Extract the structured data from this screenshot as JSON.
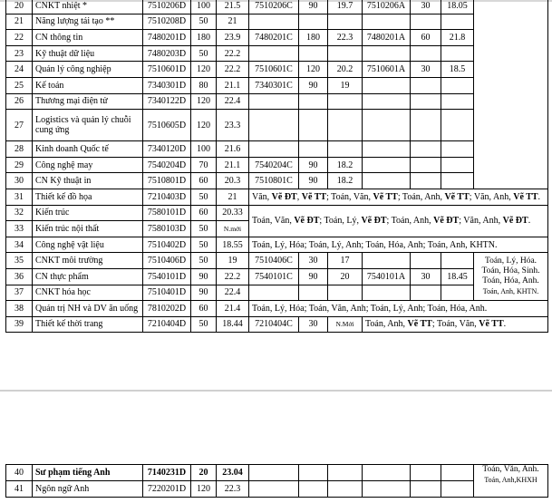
{
  "table1": {
    "rows": [
      {
        "no": "20",
        "name": "CNKT nhiệt *",
        "d": [
          "7510206D",
          "100",
          "21.5"
        ],
        "c": [
          "7510206C",
          "90",
          "19.7"
        ],
        "a": [
          "7510206A",
          "30",
          "18.05"
        ]
      },
      {
        "no": "21",
        "name": "Năng lượng tái tạo **",
        "d": [
          "7510208D",
          "50",
          "21"
        ],
        "c": [
          "",
          "",
          ""
        ],
        "a": [
          "",
          "",
          ""
        ]
      },
      {
        "no": "22",
        "name": "CN thông tin",
        "d": [
          "7480201D",
          "180",
          "23.9"
        ],
        "c": [
          "7480201C",
          "180",
          "22.3"
        ],
        "a": [
          "7480201A",
          "60",
          "21.8"
        ]
      },
      {
        "no": "23",
        "name": "Kỹ thuật dữ liệu",
        "d": [
          "7480203D",
          "50",
          "22.2"
        ],
        "c": [
          "",
          "",
          ""
        ],
        "a": [
          "",
          "",
          ""
        ]
      },
      {
        "no": "24",
        "name": "Quản lý công nghiệp",
        "d": [
          "7510601D",
          "120",
          "22.2"
        ],
        "c": [
          "7510601C",
          "120",
          "20.2"
        ],
        "a": [
          "7510601A",
          "30",
          "18.5"
        ]
      },
      {
        "no": "25",
        "name": "Kế toán",
        "d": [
          "7340301D",
          "80",
          "21.1"
        ],
        "c": [
          "7340301C",
          "90",
          "19"
        ],
        "a": [
          "",
          "",
          ""
        ]
      },
      {
        "no": "26",
        "name": "Thương mại điện tử",
        "d": [
          "7340122D",
          "120",
          "22.4"
        ],
        "c": [
          "",
          "",
          ""
        ],
        "a": [
          "",
          "",
          ""
        ]
      },
      {
        "no": "27",
        "name": "Logistics và quản lý chuỗi cung ứng",
        "d": [
          "7510605D",
          "120",
          "23.3"
        ],
        "c": [
          "",
          "",
          ""
        ],
        "a": [
          "",
          "",
          ""
        ]
      },
      {
        "no": "28",
        "name": "Kinh doanh Quốc tế",
        "d": [
          "7340120D",
          "100",
          "21.6"
        ],
        "c": [
          "",
          "",
          ""
        ],
        "a": [
          "",
          "",
          ""
        ]
      },
      {
        "no": "29",
        "name": "Công nghệ may",
        "d": [
          "7540204D",
          "70",
          "21.1"
        ],
        "c": [
          "7540204C",
          "90",
          "18.2"
        ],
        "a": [
          "",
          "",
          ""
        ]
      },
      {
        "no": "30",
        "name": "CN Kỹ thuật in",
        "d": [
          "7510801D",
          "60",
          "20.3"
        ],
        "c": [
          "7510801C",
          "90",
          "18.2"
        ],
        "a": [
          "",
          "",
          ""
        ]
      },
      {
        "no": "31",
        "name": "Thiết kế đồ họa",
        "d": [
          "7210403D",
          "50",
          "21"
        ],
        "combo": "Văn, Vẽ ĐT, Vẽ TT; Toán, Văn, Vẽ TT; Toán, Anh, Vẽ TT; Văn, Anh, Vẽ TT."
      },
      {
        "no": "32",
        "name": "Kiến trúc",
        "d": [
          "7580101D",
          "60",
          "20.33"
        ],
        "combo": "Toán, Văn, Vẽ ĐT; Toán, Lý, Vẽ ĐT; Toán, Anh, Vẽ ĐT; Văn, Anh, Vẽ ĐT."
      },
      {
        "no": "33",
        "name": "Kiến trúc nội thất",
        "d": [
          "7580103D",
          "50",
          "N.mới"
        ]
      },
      {
        "no": "34",
        "name": "Công nghệ vật liệu",
        "d": [
          "7510402D",
          "50",
          "18.55"
        ],
        "combo": "Toán, Lý, Hóa; Toán, Lý, Anh; Toán, Hóa, Anh; Toán, Anh, KHTN."
      },
      {
        "no": "35",
        "name": "CNKT môi trường",
        "d": [
          "7510406D",
          "50",
          "19"
        ],
        "c": [
          "7510406C",
          "30",
          "17"
        ],
        "a": [
          "",
          "",
          ""
        ],
        "combo_lines": [
          "Toán, Lý, Hóa.",
          "Toán, Hóa,  Sinh.",
          "Toán, Hóa, Anh.",
          "Toán, Anh, KHTN."
        ]
      },
      {
        "no": "36",
        "name": "CN thực phẩm",
        "d": [
          "7540101D",
          "90",
          "22.2"
        ],
        "c": [
          "7540101C",
          "90",
          "20"
        ],
        "a": [
          "7540101A",
          "30",
          "18.45"
        ]
      },
      {
        "no": "37",
        "name": "CNKT hóa học",
        "d": [
          "7510401D",
          "90",
          "22.4"
        ],
        "c": [
          "",
          "",
          ""
        ],
        "a": [
          "",
          "",
          ""
        ]
      },
      {
        "no": "38",
        "name": "Quản trị NH và DV ăn uống",
        "d": [
          "7810202D",
          "60",
          "21.4"
        ],
        "combo": "Toán, Lý, Hóa; Toán, Văn, Anh; Toán, Lý, Anh; Toán, Hóa, Anh."
      },
      {
        "no": "39",
        "name": "Thiết kế thời trang",
        "d": [
          "7210404D",
          "50",
          "18.44"
        ],
        "c": [
          "7210404C",
          "30",
          "N.Mới"
        ],
        "combo": "Toán, Anh, Vẽ TT; Toán, Văn, Vẽ TT."
      }
    ]
  },
  "table2": {
    "rows": [
      {
        "no": "40",
        "name": "Sư phạm tiếng Anh",
        "d": [
          "7140231D",
          "20",
          "23.04"
        ],
        "combo_lines": [
          "Toán, Văn, Anh.",
          "Toán, Anh,KHXH"
        ]
      },
      {
        "no": "41",
        "name": "Ngôn ngữ Anh",
        "d": [
          "7220201D",
          "120",
          "22.3"
        ]
      }
    ]
  }
}
